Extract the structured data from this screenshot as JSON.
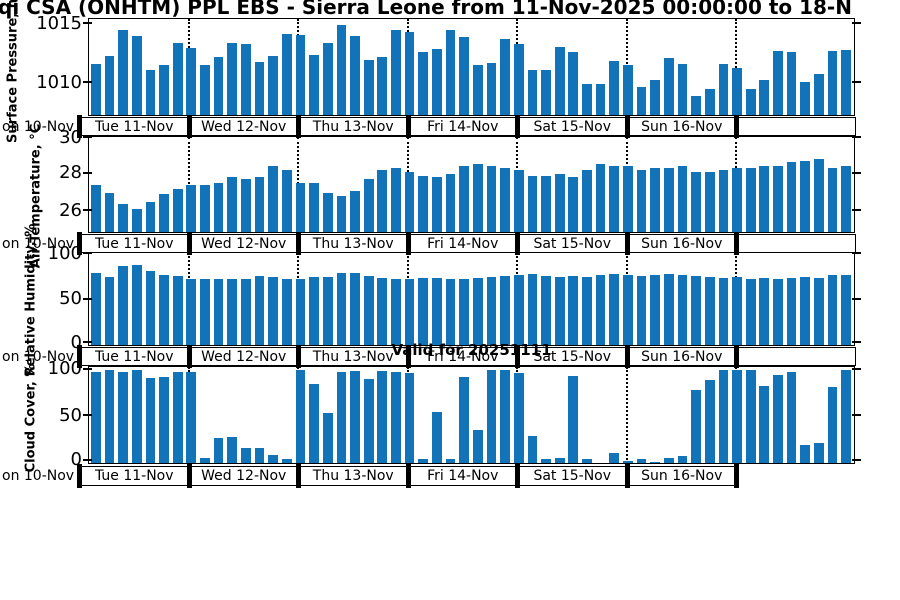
{
  "title": "qi CSA (ONHTM) PPL EBS  - Sierra Leone from 11-Nov-2025 00:00:00 to 18-N",
  "valid_label": "Valid for 20251111",
  "chart_data": {
    "type": "bar",
    "title": "qi CSA (ONHTM) PPL EBS  - Sierra Leone from 11-Nov-2025 00:00:00 to 18-N",
    "valid_label": "Valid for 20251111",
    "x_start": "11-Nov-2025 00:00:00",
    "x_step_hours": 3,
    "n_bars": 56,
    "bar_color": "#1273b9",
    "grid": "dotted vertical lines at day boundaries",
    "legend": "none",
    "day_labels": [
      "Tue 11-Nov",
      "Wed 12-Nov",
      "Thu 13-Nov",
      "Fri 14-Nov",
      "Sat 15-Nov",
      "Sun 16-Nov"
    ],
    "left_clipped_day_label": "on 10-Nov",
    "charts": [
      {
        "name": "surface_pressure",
        "ylabel": "Surface Pressure, hPa",
        "yticks": [
          1010,
          1015
        ],
        "ylim": [
          1007.3,
          1015.35
        ],
        "values": [
          1011.6,
          1012.3,
          1014.5,
          1014.0,
          1011.1,
          1011.5,
          1013.4,
          1013.0,
          1011.5,
          1012.2,
          1013.4,
          1013.3,
          1011.8,
          1012.3,
          1014.2,
          1014.1,
          1012.4,
          1013.4,
          1014.9,
          1014.0,
          1012.0,
          1012.2,
          1014.5,
          1014.3,
          1012.6,
          1012.9,
          1014.5,
          1013.9,
          1011.5,
          1011.7,
          1013.7,
          1013.3,
          1011.1,
          1011.1,
          1013.1,
          1012.6,
          1009.9,
          1009.9,
          1011.9,
          1011.5,
          1009.7,
          1010.3,
          1012.1,
          1011.6,
          1008.9,
          1009.5,
          1011.6,
          1011.3,
          1009.5,
          1010.3,
          1012.7,
          1012.6,
          1010.1,
          1010.8,
          1012.7,
          1012.8
        ]
      },
      {
        "name": "air_temperature",
        "ylabel": "Air Temperature, °C",
        "yticks": [
          26,
          28,
          30
        ],
        "ylim": [
          24.9,
          29.9
        ],
        "values": [
          27.4,
          27.0,
          26.4,
          26.1,
          26.5,
          26.9,
          27.2,
          27.4,
          27.4,
          27.5,
          27.8,
          27.7,
          27.8,
          28.4,
          28.2,
          27.5,
          27.5,
          27.0,
          26.8,
          27.1,
          27.7,
          28.2,
          28.3,
          28.1,
          27.9,
          27.8,
          28.0,
          28.4,
          28.5,
          28.4,
          28.3,
          28.2,
          27.9,
          27.9,
          28.0,
          27.8,
          28.2,
          28.5,
          28.4,
          28.4,
          28.2,
          28.3,
          28.3,
          28.4,
          28.1,
          28.1,
          28.2,
          28.3,
          28.3,
          28.4,
          28.4,
          28.6,
          28.7,
          28.8,
          28.3,
          28.4
        ]
      },
      {
        "name": "relative_humidity",
        "ylabel": "Relative Humidity, %",
        "yticks": [
          0,
          50,
          100
        ],
        "ylim": [
          0,
          100
        ],
        "values": [
          79,
          75,
          87,
          88,
          81,
          77,
          76,
          73,
          73,
          72,
          73,
          73,
          76,
          75,
          72,
          73,
          75,
          75,
          79,
          79,
          76,
          74,
          73,
          73,
          74,
          74,
          73,
          73,
          74,
          75,
          76,
          77,
          78,
          76,
          75,
          76,
          75,
          77,
          78,
          77,
          76,
          77,
          78,
          77,
          76,
          75,
          74,
          75,
          73,
          74,
          73,
          74,
          75,
          74,
          77,
          77
        ]
      },
      {
        "name": "cloud_cover",
        "ylabel": "Cloud Cover, %",
        "yticks": [
          0,
          50,
          100
        ],
        "ylim": [
          0,
          102
        ],
        "values": [
          98,
          100,
          98,
          100,
          91,
          92,
          98,
          98,
          5,
          27,
          28,
          16,
          16,
          8,
          4,
          100,
          85,
          53,
          98,
          99,
          90,
          99,
          98,
          97,
          4,
          55,
          4,
          92,
          35,
          100,
          100,
          97,
          29,
          4,
          5,
          93,
          4,
          0,
          10,
          2,
          4,
          1,
          5,
          7,
          78,
          89,
          100,
          100,
          100,
          83,
          95,
          98,
          19,
          21,
          81,
          100
        ]
      }
    ]
  }
}
